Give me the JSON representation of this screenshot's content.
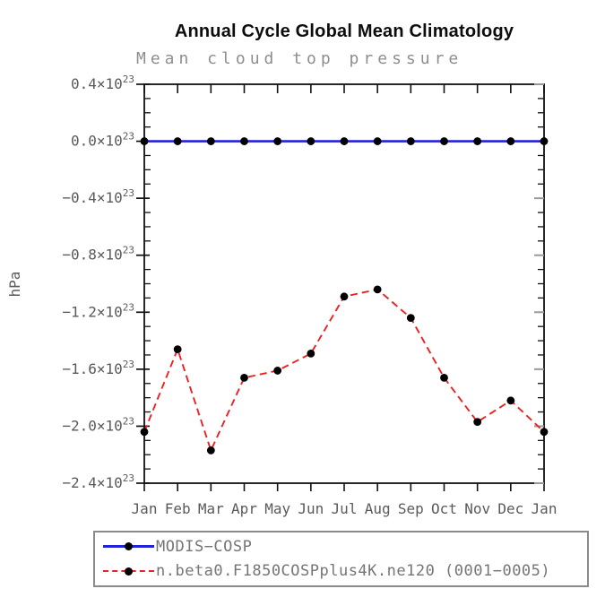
{
  "title": "Annual Cycle Global Mean Climatology",
  "subtitle": "Mean cloud top pressure",
  "chart_data": {
    "type": "line",
    "title": "Annual Cycle Global Mean Climatology",
    "subtitle": "Mean cloud top pressure",
    "xlabel": "",
    "ylabel": "hPa",
    "categories": [
      "Jan",
      "Feb",
      "Mar",
      "Apr",
      "May",
      "Jun",
      "Jul",
      "Aug",
      "Sep",
      "Oct",
      "Nov",
      "Dec",
      "Jan"
    ],
    "y_value_scale": "x10^23",
    "y_exponent_label": "23",
    "ylim": [
      -2.4,
      0.4
    ],
    "y_major_step": 0.4,
    "y_minor_step": 0.1,
    "y_tick_values": [
      0.4,
      0.0,
      -0.4,
      -0.8,
      -1.2,
      -1.6,
      -2.0,
      -2.4
    ],
    "grid": false,
    "legend_position": "bottom-left",
    "series": [
      {
        "name": "MODIS−COSP",
        "color": "#2222dd",
        "line_style": "solid",
        "marker": "circle",
        "marker_color": "#000000",
        "values": [
          0.0,
          0.0,
          0.0,
          0.0,
          0.0,
          0.0,
          0.0,
          0.0,
          0.0,
          0.0,
          0.0,
          0.0,
          0.0
        ]
      },
      {
        "name": "n.beta0.F1850COSPplus4K.ne120 (0001−0005)",
        "color": "#ee2020",
        "line_style": "dashed",
        "marker": "circle",
        "marker_color": "#000000",
        "values": [
          -2.04,
          -1.46,
          -2.17,
          -1.66,
          -1.61,
          -1.49,
          -1.09,
          -1.04,
          -1.24,
          -1.66,
          -1.97,
          -1.82,
          -2.04
        ]
      }
    ]
  },
  "colors": {
    "frame": "#111111",
    "tick_label": "#5a5a5a",
    "subtitle_gray": "#8e8e8e",
    "legend_text": "#757575",
    "right_major_tick": "#999999"
  }
}
